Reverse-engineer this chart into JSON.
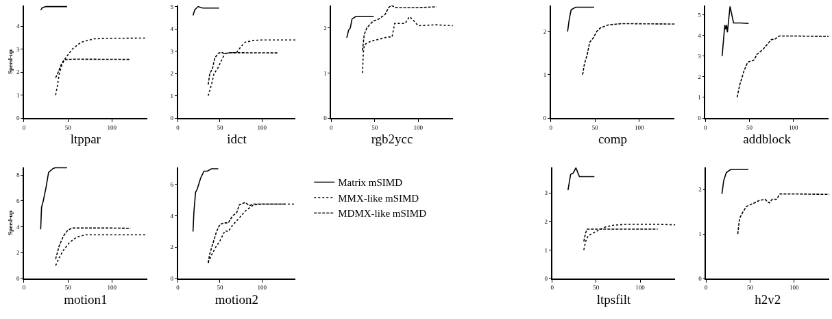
{
  "chart_data": [
    {
      "type": "line",
      "xlabel": "ltppar",
      "ylabel": "Speed-up",
      "xlim": [
        0,
        140
      ],
      "xticks": [
        0,
        50,
        100
      ],
      "ylim": [
        0,
        4.9
      ],
      "yticks": [
        0,
        1,
        2,
        3,
        4
      ],
      "legend": false,
      "series": [
        {
          "color": "#000000",
          "line_style": "solid",
          "x": [
            19,
            21,
            25,
            49
          ],
          "values": [
            4.7,
            4.8,
            4.85,
            4.85
          ]
        },
        {
          "color": "#000000",
          "line_style": "dotted",
          "x": [
            36,
            38,
            40,
            43,
            47,
            55,
            65,
            80,
            100,
            140
          ],
          "values": [
            1.0,
            1.4,
            1.9,
            2.3,
            2.6,
            3.0,
            3.3,
            3.45,
            3.47,
            3.48
          ]
        },
        {
          "color": "#000000",
          "line_style": "dashed",
          "x": [
            36,
            39,
            42,
            45,
            48,
            60,
            120
          ],
          "values": [
            1.75,
            2.0,
            2.3,
            2.5,
            2.55,
            2.56,
            2.55
          ]
        }
      ]
    },
    {
      "type": "line",
      "xlabel": "idct",
      "xlim": [
        0,
        140
      ],
      "xticks": [
        0,
        50,
        100
      ],
      "ylim": [
        0,
        5.05
      ],
      "yticks": [
        0,
        1,
        2,
        3,
        4,
        5
      ],
      "legend": false,
      "series": [
        {
          "color": "#000000",
          "line_style": "solid",
          "x": [
            18,
            20,
            24,
            28,
            30,
            49
          ],
          "values": [
            4.6,
            4.85,
            5.0,
            4.95,
            4.93,
            4.93
          ]
        },
        {
          "color": "#000000",
          "line_style": "dotted",
          "x": [
            36,
            40,
            43,
            47,
            52,
            56,
            70,
            75,
            80,
            90,
            100,
            140
          ],
          "values": [
            1.0,
            1.5,
            2.0,
            2.2,
            2.6,
            2.9,
            2.95,
            3.2,
            3.4,
            3.48,
            3.5,
            3.5
          ]
        },
        {
          "color": "#000000",
          "line_style": "dashed",
          "x": [
            36,
            38,
            41,
            44,
            48,
            52,
            56,
            60,
            120
          ],
          "values": [
            1.5,
            2.0,
            2.2,
            2.7,
            2.9,
            2.95,
            2.88,
            2.93,
            2.92
          ]
        }
      ]
    },
    {
      "type": "line",
      "xlabel": "rgb2ycc",
      "xlim": [
        0,
        140
      ],
      "xticks": [
        0,
        50,
        100
      ],
      "ylim": [
        0,
        2.5
      ],
      "yticks": [
        0,
        1,
        2
      ],
      "legend": false,
      "series": [
        {
          "color": "#000000",
          "line_style": "solid",
          "x": [
            18,
            20,
            22,
            24,
            28,
            49
          ],
          "values": [
            1.78,
            1.95,
            2.0,
            2.2,
            2.25,
            2.25
          ]
        },
        {
          "color": "#000000",
          "line_style": "dotted",
          "x": [
            36,
            37,
            38,
            40,
            45,
            55,
            65,
            70,
            73,
            80,
            85,
            90,
            93,
            100,
            120,
            140
          ],
          "values": [
            1.0,
            1.45,
            1.6,
            1.65,
            1.7,
            1.75,
            1.8,
            1.8,
            2.1,
            2.1,
            2.1,
            2.25,
            2.2,
            2.05,
            2.07,
            2.05
          ]
        },
        {
          "color": "#000000",
          "line_style": "dashed",
          "x": [
            36,
            38,
            41,
            48,
            55,
            62,
            66,
            69,
            75,
            100,
            121
          ],
          "values": [
            1.5,
            1.85,
            2.0,
            2.15,
            2.2,
            2.3,
            2.45,
            2.5,
            2.45,
            2.45,
            2.47
          ]
        }
      ]
    },
    {
      "type": "line",
      "xlabel": "comp",
      "xlim": [
        0,
        140
      ],
      "xticks": [
        0,
        50,
        100
      ],
      "ylim": [
        0,
        2.6
      ],
      "yticks": [
        0,
        1,
        2
      ],
      "legend": false,
      "series": [
        {
          "color": "#000000",
          "line_style": "solid",
          "x": [
            19,
            21,
            23,
            28,
            49
          ],
          "values": [
            2.0,
            2.3,
            2.5,
            2.56,
            2.56
          ]
        },
        {
          "color": "#000000",
          "line_style": "dashed",
          "x": [
            36,
            38,
            41,
            44,
            48,
            52,
            56,
            65,
            80,
            140
          ],
          "values": [
            1.0,
            1.25,
            1.45,
            1.75,
            1.85,
            2.0,
            2.08,
            2.15,
            2.18,
            2.17
          ]
        }
      ]
    },
    {
      "type": "line",
      "xlabel": "addblock",
      "xlim": [
        0,
        140
      ],
      "xticks": [
        0,
        50,
        100
      ],
      "ylim": [
        0,
        5.45
      ],
      "yticks": [
        0,
        1,
        2,
        3,
        4,
        5
      ],
      "legend": false,
      "series": [
        {
          "color": "#000000",
          "line_style": "solid",
          "x": [
            19,
            21,
            22,
            23,
            24,
            25,
            27,
            28,
            32,
            40,
            49
          ],
          "values": [
            3.0,
            4.0,
            4.5,
            4.3,
            4.5,
            4.15,
            5.0,
            5.4,
            4.6,
            4.6,
            4.58
          ]
        },
        {
          "color": "#000000",
          "line_style": "dashed",
          "x": [
            36,
            39,
            44,
            48,
            55,
            59,
            65,
            70,
            75,
            79,
            84,
            100,
            140
          ],
          "values": [
            1.0,
            1.6,
            2.3,
            2.7,
            2.8,
            3.1,
            3.3,
            3.55,
            3.8,
            3.82,
            3.97,
            3.97,
            3.95
          ]
        }
      ]
    },
    {
      "type": "line",
      "xlabel": "motion1",
      "ylabel": "Speed-up",
      "xlim": [
        0,
        140
      ],
      "xticks": [
        0,
        50,
        100
      ],
      "ylim": [
        0,
        8.6
      ],
      "yticks": [
        0,
        2,
        4,
        6,
        8
      ],
      "legend": false,
      "series": [
        {
          "color": "#000000",
          "line_style": "solid",
          "x": [
            19,
            20,
            22,
            25,
            28,
            33,
            36,
            49
          ],
          "values": [
            3.8,
            5.5,
            6.0,
            7.0,
            8.2,
            8.5,
            8.57,
            8.57
          ]
        },
        {
          "color": "#000000",
          "line_style": "dotted",
          "x": [
            36,
            40,
            45,
            52,
            60,
            70,
            100,
            140
          ],
          "values": [
            1.0,
            1.6,
            2.2,
            2.8,
            3.2,
            3.38,
            3.38,
            3.38
          ]
        },
        {
          "color": "#000000",
          "line_style": "dashed",
          "x": [
            36,
            40,
            45,
            50,
            55,
            100,
            121
          ],
          "values": [
            1.5,
            2.5,
            3.3,
            3.75,
            3.9,
            3.9,
            3.88
          ]
        }
      ]
    },
    {
      "type": "line",
      "xlabel": "motion2",
      "xlim": [
        0,
        140
      ],
      "xticks": [
        0,
        50,
        100
      ],
      "ylim": [
        0,
        7.1
      ],
      "yticks": [
        0,
        2,
        4,
        6
      ],
      "legend": "right",
      "series": [
        {
          "name": "Matrix mSIMD",
          "color": "#000000",
          "line_style": "solid",
          "x": [
            18,
            19,
            21,
            23,
            27,
            31,
            35,
            40,
            48
          ],
          "values": [
            3.0,
            4.2,
            5.5,
            5.7,
            6.4,
            6.85,
            6.85,
            7.0,
            7.0
          ]
        },
        {
          "name": "MMX-like mSIMD",
          "color": "#000000",
          "line_style": "dotted",
          "x": [
            36,
            40,
            45,
            50,
            56,
            60,
            65,
            72,
            80,
            90,
            100,
            140
          ],
          "values": [
            1.0,
            1.5,
            2.0,
            2.4,
            3.05,
            3.0,
            3.4,
            3.8,
            4.3,
            4.7,
            4.75,
            4.75
          ]
        },
        {
          "name": "MDMX-like mSIMD",
          "color": "#000000",
          "line_style": "dashed",
          "x": [
            36,
            38,
            42,
            46,
            50,
            55,
            60,
            65,
            70,
            73,
            80,
            85,
            90,
            127
          ],
          "values": [
            1.0,
            1.6,
            2.3,
            3.0,
            3.45,
            3.55,
            3.55,
            4.0,
            4.2,
            4.7,
            4.85,
            4.65,
            4.75,
            4.75
          ]
        }
      ]
    },
    {
      "type": "line",
      "xlabel": "ltpsfilt",
      "xlim": [
        0,
        140
      ],
      "xticks": [
        0,
        50,
        100
      ],
      "ylim": [
        0,
        3.9
      ],
      "yticks": [
        0,
        1,
        2,
        3
      ],
      "legend": false,
      "series": [
        {
          "color": "#000000",
          "line_style": "solid",
          "x": [
            18,
            21,
            24,
            27,
            31,
            48
          ],
          "values": [
            3.1,
            3.65,
            3.7,
            3.88,
            3.57,
            3.57
          ]
        },
        {
          "color": "#000000",
          "line_style": "dotted",
          "x": [
            36,
            38,
            41,
            50,
            60,
            70,
            85,
            120,
            140
          ],
          "values": [
            1.0,
            1.3,
            1.5,
            1.65,
            1.8,
            1.87,
            1.9,
            1.9,
            1.88
          ]
        },
        {
          "color": "#000000",
          "line_style": "dashed",
          "x": [
            36,
            38,
            40,
            50,
            120
          ],
          "values": [
            1.3,
            1.6,
            1.73,
            1.73,
            1.73
          ]
        }
      ]
    },
    {
      "type": "line",
      "xlabel": "h2v2",
      "xlim": [
        0,
        140
      ],
      "xticks": [
        0,
        50,
        100
      ],
      "ylim": [
        0,
        2.5
      ],
      "yticks": [
        0,
        1,
        2
      ],
      "legend": false,
      "series": [
        {
          "color": "#000000",
          "line_style": "solid",
          "x": [
            18,
            20,
            23,
            28,
            48
          ],
          "values": [
            1.9,
            2.2,
            2.38,
            2.45,
            2.45
          ]
        },
        {
          "color": "#000000",
          "line_style": "dashed",
          "x": [
            36,
            38,
            42,
            46,
            55,
            60,
            67,
            70,
            72,
            75,
            80,
            84,
            100,
            140
          ],
          "values": [
            1.0,
            1.35,
            1.5,
            1.62,
            1.7,
            1.75,
            1.78,
            1.72,
            1.7,
            1.78,
            1.78,
            1.9,
            1.9,
            1.89
          ]
        }
      ]
    }
  ]
}
